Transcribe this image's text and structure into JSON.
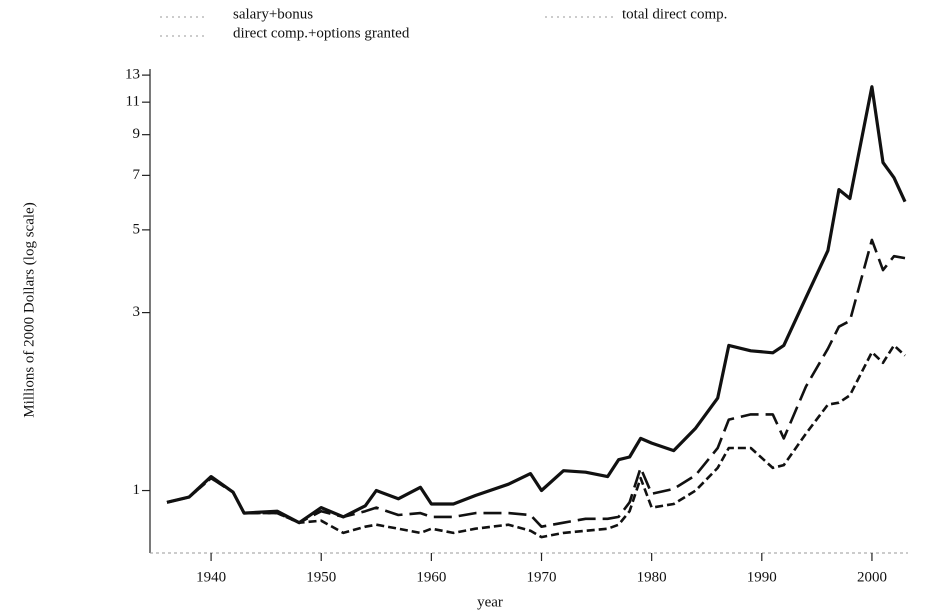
{
  "chart_data": {
    "type": "line",
    "ylabel": "Millions of 2000 Dollars (log scale)",
    "xlabel": "year",
    "ylog": true,
    "xlim": [
      1934,
      2004
    ],
    "ylim": [
      0.68,
      13.5
    ],
    "xticks": [
      1940,
      1950,
      1960,
      1970,
      1980,
      1990,
      2000
    ],
    "yticks": [
      1,
      3,
      5,
      7,
      9,
      11,
      13
    ],
    "legend": "top",
    "x": [
      1936,
      1938,
      1940,
      1942,
      1943,
      1946,
      1948,
      1950,
      1952,
      1954,
      1955,
      1957,
      1959,
      1960,
      1962,
      1964,
      1967,
      1969,
      1970,
      1972,
      1974,
      1976,
      1977,
      1978,
      1979,
      1980,
      1982,
      1984,
      1986,
      1987,
      1989,
      1991,
      1992,
      1994,
      1996,
      1997,
      1998,
      2000,
      2001,
      2002,
      2003
    ],
    "series": [
      {
        "name": "salary+bonus",
        "color": "#111111",
        "dash": "short-dash",
        "values": [
          0.93,
          0.96,
          1.08,
          0.99,
          0.87,
          0.87,
          0.82,
          0.83,
          0.77,
          0.8,
          0.81,
          0.79,
          0.77,
          0.79,
          0.77,
          0.79,
          0.81,
          0.78,
          0.75,
          0.77,
          0.78,
          0.79,
          0.81,
          0.88,
          1.08,
          0.9,
          0.92,
          1.0,
          1.15,
          1.3,
          1.3,
          1.15,
          1.17,
          1.42,
          1.7,
          1.72,
          1.8,
          2.35,
          2.2,
          2.45,
          2.3
        ]
      },
      {
        "name": "total direct comp.",
        "color": "#111111",
        "dash": "long-dash",
        "values": [
          0.93,
          0.96,
          1.08,
          0.99,
          0.87,
          0.87,
          0.82,
          0.88,
          0.85,
          0.88,
          0.9,
          0.86,
          0.87,
          0.85,
          0.85,
          0.87,
          0.87,
          0.86,
          0.8,
          0.82,
          0.84,
          0.84,
          0.85,
          0.93,
          1.15,
          0.98,
          1.01,
          1.1,
          1.3,
          1.55,
          1.6,
          1.6,
          1.38,
          1.9,
          2.4,
          2.75,
          2.85,
          4.7,
          3.9,
          4.25,
          4.2
        ]
      },
      {
        "name": "direct comp.+options granted",
        "color": "#111111",
        "dash": "solid",
        "values": [
          0.93,
          0.96,
          1.09,
          0.99,
          0.87,
          0.88,
          0.82,
          0.9,
          0.85,
          0.91,
          1.0,
          0.95,
          1.02,
          0.92,
          0.92,
          0.97,
          1.04,
          1.11,
          1.0,
          1.13,
          1.12,
          1.09,
          1.21,
          1.23,
          1.38,
          1.34,
          1.28,
          1.47,
          1.77,
          2.45,
          2.37,
          2.34,
          2.45,
          3.29,
          4.4,
          6.41,
          6.07,
          12.1,
          7.58,
          6.9,
          5.95
        ]
      }
    ]
  }
}
